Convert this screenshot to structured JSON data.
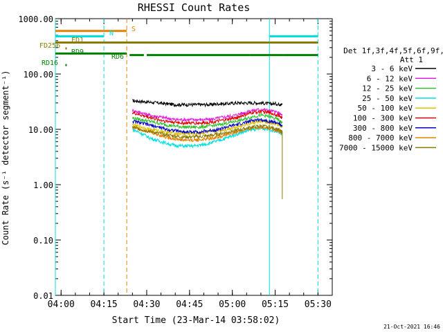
{
  "chart_data": {
    "type": "line",
    "title": "RHESSI Count Rates",
    "xlabel": "Start Time (23-Mar-14 03:58:02)",
    "ylabel": "Count Rate (s⁻¹ detector segment⁻¹)",
    "y_scale": "log",
    "x_units": "minutes since 03:58:02",
    "xlim": [
      0,
      97
    ],
    "ylim": [
      0.01,
      1000
    ],
    "x_ticks": [
      {
        "label": "04:00",
        "value": 2
      },
      {
        "label": "04:15",
        "value": 17
      },
      {
        "label": "04:30",
        "value": 32
      },
      {
        "label": "04:45",
        "value": 47
      },
      {
        "label": "05:00",
        "value": 62
      },
      {
        "label": "05:15",
        "value": 77
      },
      {
        "label": "05:30",
        "value": 92
      }
    ],
    "y_ticks": [
      {
        "label": "1000.00",
        "value": 1000
      },
      {
        "label": "100.00",
        "value": 100
      },
      {
        "label": "10.00",
        "value": 10
      },
      {
        "label": "1.00",
        "value": 1
      },
      {
        "label": "0.10",
        "value": 0.1
      },
      {
        "label": "0.01",
        "value": 0.01
      }
    ],
    "grid": false,
    "legend_position": "right",
    "legend_header": [
      "Det 1f,3f,4f,5f,6f,9f,",
      "Att 1"
    ],
    "x": [
      27,
      30,
      33,
      36,
      39,
      42,
      45,
      48,
      51,
      54,
      57,
      60,
      63,
      66,
      69,
      72,
      75,
      78,
      79.5
    ],
    "series": [
      {
        "name": "3 - 6 keV",
        "color": "#000000",
        "values": [
          33,
          32,
          31,
          30,
          29,
          28,
          28,
          28,
          28,
          28,
          29,
          29,
          30,
          30,
          30,
          30,
          29,
          29,
          28
        ]
      },
      {
        "name": "6 - 12 keV",
        "color": "#e020e0",
        "values": [
          22,
          20,
          18,
          17,
          16,
          15,
          15,
          15,
          15,
          15,
          16,
          17,
          18,
          20,
          22,
          23,
          22,
          20,
          18
        ]
      },
      {
        "name": "12 - 25 keV",
        "color": "#30c030",
        "values": [
          16,
          15,
          14,
          13,
          12,
          11.5,
          11,
          11,
          11,
          11.5,
          12,
          13,
          14,
          15,
          17,
          18,
          17,
          15,
          13
        ]
      },
      {
        "name": "25 - 50 keV",
        "color": "#00e0e0",
        "values": [
          10,
          8.5,
          7,
          6.2,
          5.6,
          5.1,
          5,
          5,
          5.2,
          5.6,
          6.2,
          7,
          8,
          9,
          10,
          10.5,
          10,
          9,
          8
        ]
      },
      {
        "name": "50 - 100 keV",
        "color": "#e0c000",
        "values": [
          12,
          11,
          10,
          9.5,
          9,
          8.5,
          8.3,
          8.3,
          8.5,
          9,
          9.5,
          10,
          11,
          12,
          13,
          14,
          13,
          12,
          11
        ]
      },
      {
        "name": "100 - 300 keV",
        "color": "#e00000",
        "values": [
          20,
          18,
          16.5,
          15,
          14,
          13.5,
          13,
          13,
          13,
          13.5,
          14,
          15,
          16,
          18,
          20,
          21,
          20,
          18,
          16
        ]
      },
      {
        "name": "300 - 800 keV",
        "color": "#0000c0",
        "values": [
          14,
          13,
          12,
          11,
          10,
          9.5,
          9,
          9,
          9,
          9.5,
          10,
          11,
          12,
          13,
          14.5,
          15,
          14,
          13,
          11.5
        ]
      },
      {
        "name": "800 - 7000 keV",
        "color": "#e08000",
        "values": [
          11,
          10,
          9,
          8,
          7.2,
          6.7,
          6.4,
          6.4,
          6.5,
          6.8,
          7.3,
          8,
          8.8,
          9.6,
          10.5,
          11,
          10.5,
          9.5,
          8.5
        ]
      },
      {
        "name": "7000 - 15000 keV",
        "color": "#8b7a00",
        "values": [
          11,
          10,
          9.2,
          8.5,
          8,
          7.5,
          7.3,
          7.3,
          7.4,
          7.7,
          8.2,
          8.8,
          9.5,
          10.2,
          11,
          11.5,
          11,
          10,
          9
        ]
      }
    ],
    "drop": {
      "series": "7000 - 15000 keV",
      "x": 79.5,
      "to": 0.55
    },
    "vlines": [
      {
        "x": 0,
        "color": "#00e0e0",
        "style": "solid"
      },
      {
        "x": 17,
        "color": "#00e0e0",
        "style": "dashed"
      },
      {
        "x": 25,
        "color": "#e08000",
        "style": "dashed"
      },
      {
        "x": 75,
        "color": "#00e0e0",
        "style": "solid"
      },
      {
        "x": 92,
        "color": "#00e0e0",
        "style": "dashed"
      }
    ],
    "flag_bars": [
      {
        "label": "S",
        "color": "#e08000",
        "segments": [
          [
            0,
            25
          ]
        ],
        "level": 600
      },
      {
        "label": "N",
        "color": "#00e0e0",
        "segments": [
          [
            0,
            17
          ],
          [
            75,
            92
          ]
        ],
        "level": 480
      },
      {
        "label": "FD1",
        "color": "#8b7a00",
        "segments": [
          [
            0,
            92
          ]
        ],
        "level": 370
      },
      {
        "label": "FD256",
        "color": "#8b7a00",
        "segments": [
          [
            3.5,
            4
          ]
        ],
        "level": 290
      },
      {
        "label": "RD9",
        "color": "#008000",
        "segments": [
          [
            0,
            25
          ]
        ],
        "level": 235
      },
      {
        "label": "RD6",
        "color": "#008000",
        "segments": [
          [
            26,
            31
          ],
          [
            32,
            68
          ],
          [
            68,
            80
          ],
          [
            80,
            92
          ]
        ],
        "level": 220
      },
      {
        "label": "RD16",
        "color": "#008000",
        "segments": [
          [
            3.5,
            4
          ]
        ],
        "level": 145
      }
    ],
    "footer_date": "21-Oct-2021 16:46"
  }
}
